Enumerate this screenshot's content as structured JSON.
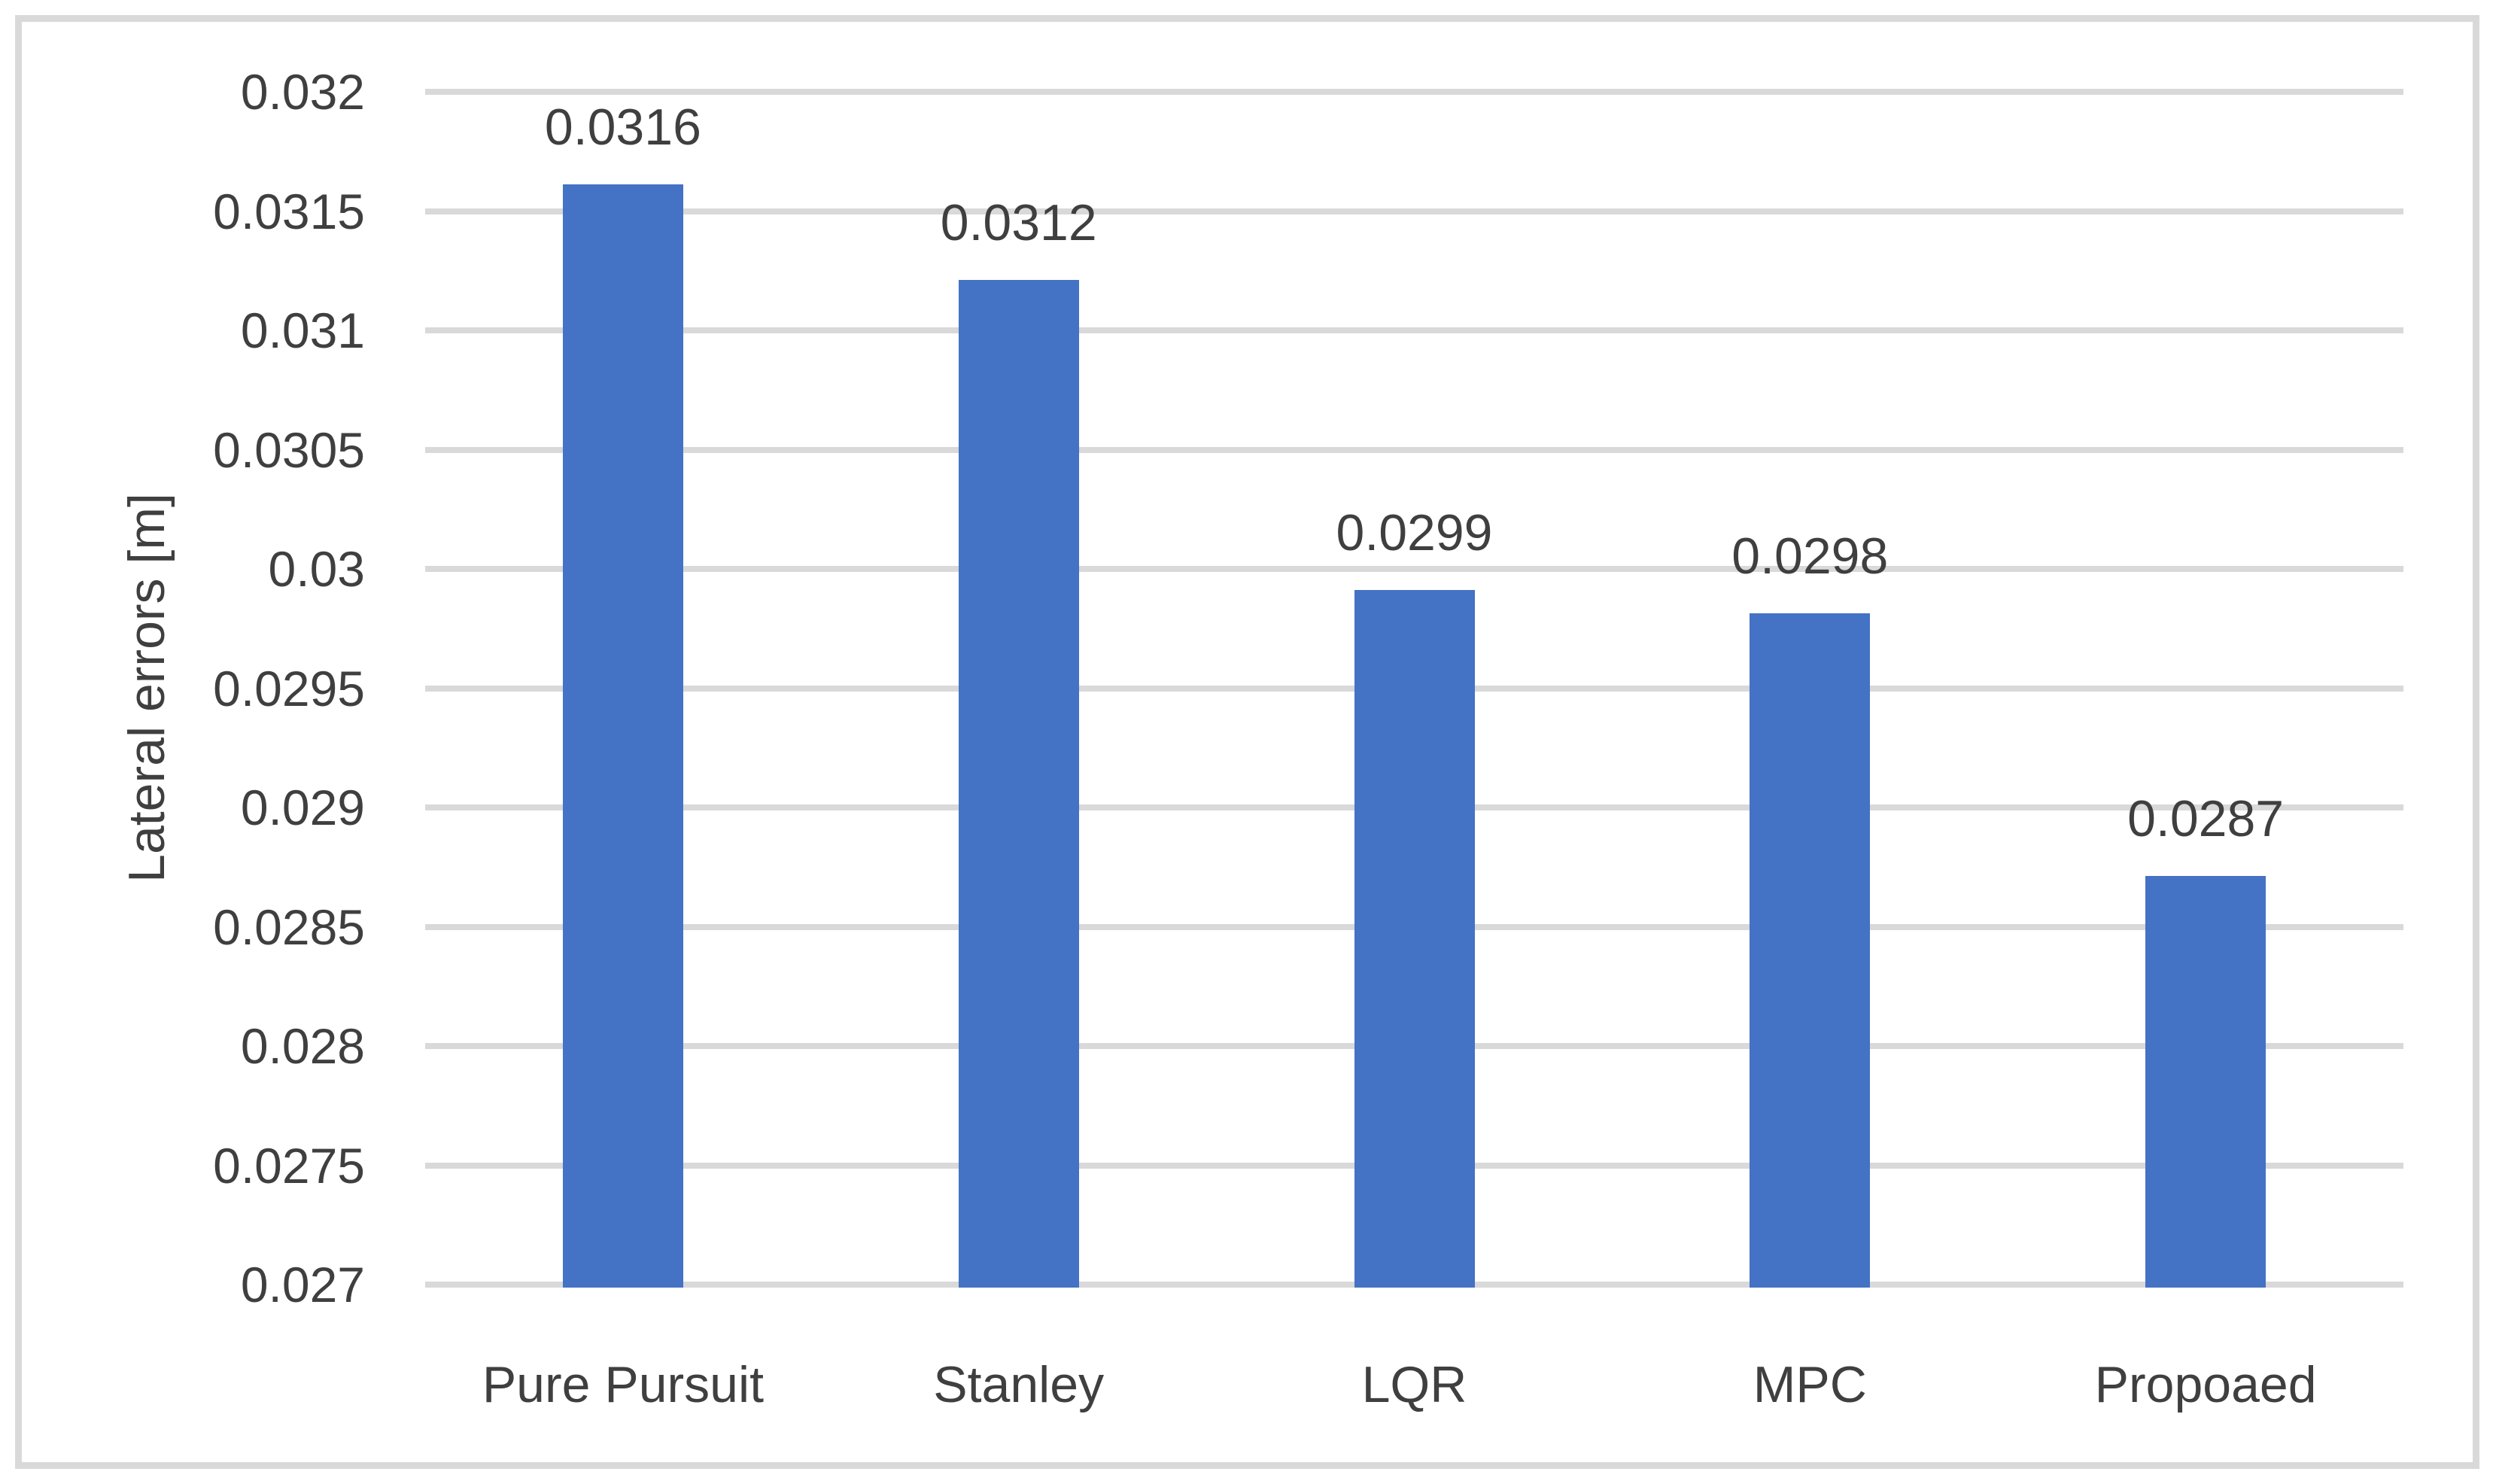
{
  "figure": {
    "background_color": "#ffffff",
    "border_color": "#d9d9d9"
  },
  "chart_data": {
    "type": "bar",
    "title": "",
    "xlabel": "",
    "ylabel": "Lateral errors [m]",
    "categories": [
      "Pure Pursuit",
      "Stanley",
      "LQR",
      "MPC",
      "Propoaed"
    ],
    "values": [
      0.0316,
      0.0312,
      0.0299,
      0.0298,
      0.0287
    ],
    "value_labels": [
      "0.0316",
      "0.0312",
      "0.0299",
      "0.0298",
      "0.0287"
    ],
    "ylim": [
      0.027,
      0.032
    ],
    "yticks": [
      {
        "value": 0.027,
        "label": "0.027"
      },
      {
        "value": 0.0275,
        "label": "0.0275"
      },
      {
        "value": 0.028,
        "label": "0.028"
      },
      {
        "value": 0.0285,
        "label": "0.0285"
      },
      {
        "value": 0.029,
        "label": "0.029"
      },
      {
        "value": 0.0295,
        "label": "0.0295"
      },
      {
        "value": 0.03,
        "label": "0.03"
      },
      {
        "value": 0.0305,
        "label": "0.0305"
      },
      {
        "value": 0.031,
        "label": "0.031"
      },
      {
        "value": 0.0315,
        "label": "0.0315"
      },
      {
        "value": 0.032,
        "label": "0.032"
      }
    ],
    "grid": "horizontal",
    "legend_position": "none",
    "bar_color": "#4472C4",
    "gridline_color": "#d9d9d9",
    "text_color": "#3f3f3f"
  }
}
